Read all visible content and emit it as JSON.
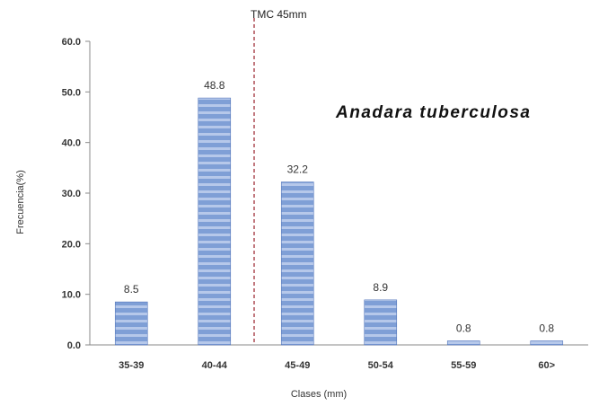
{
  "chart_data": {
    "type": "bar",
    "categories": [
      "35-39",
      "40-44",
      "45-49",
      "50-54",
      "55-59",
      "60>"
    ],
    "values": [
      8.5,
      48.8,
      32.2,
      8.9,
      0.8,
      0.8
    ],
    "data_labels": [
      "8.5",
      "48.8",
      "32.2",
      "8.9",
      "0.8",
      "0.8"
    ],
    "yticks": [
      "0.0",
      "10.0",
      "20.0",
      "30.0",
      "40.0",
      "50.0",
      "60.0"
    ],
    "ylim": [
      0,
      60
    ],
    "xlabel": "Clases (mm)",
    "ylabel": "Frecuencia(%)",
    "species_label": "Anadara tuberculosa",
    "reference_line": {
      "label": "TMC 45mm",
      "position_category_boundary": "40-44|45-49",
      "color": "#a0303a"
    },
    "grid": false,
    "legend": "none",
    "bar_color": "#7f9fd6",
    "bar_stripe_color": "#b6c8ea",
    "bar_edge_color": "#5577bb"
  }
}
